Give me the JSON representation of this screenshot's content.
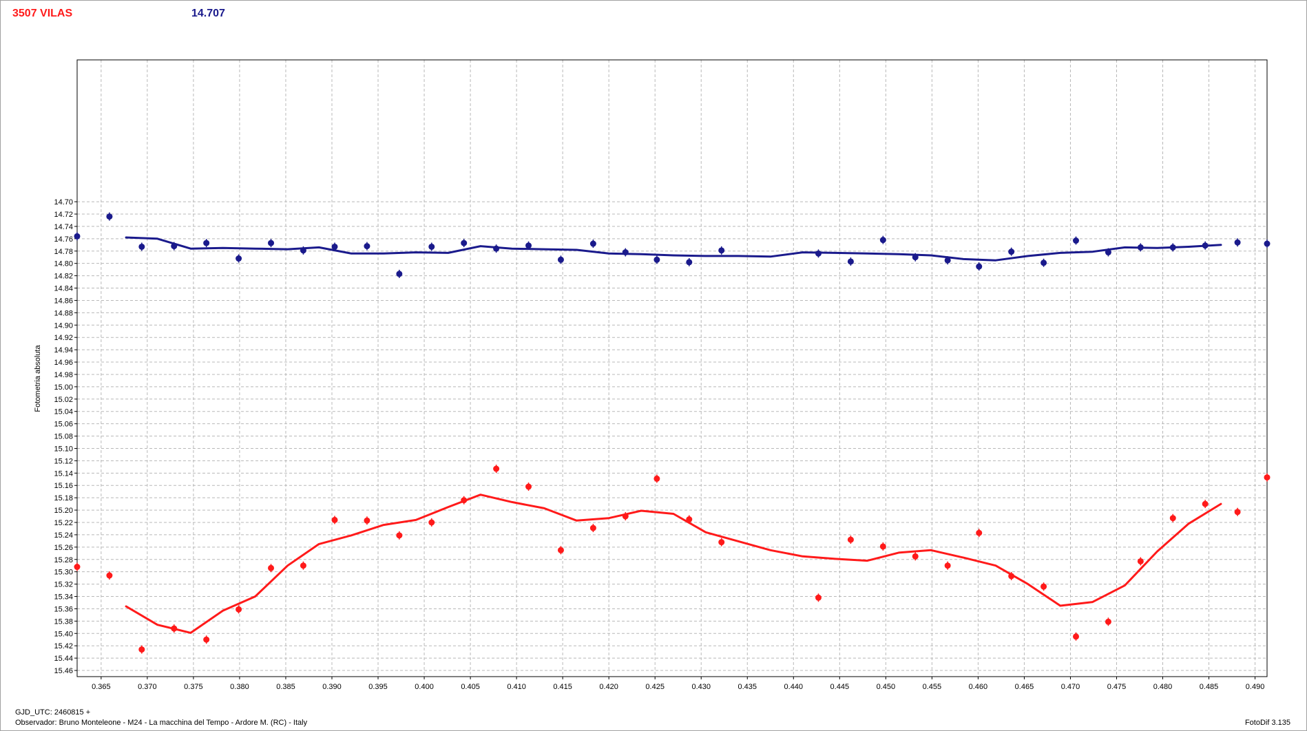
{
  "header": {
    "target_label": "3507 VILAS",
    "comparison_value": "14.707"
  },
  "footer": {
    "gjd_label": "GJD_UTC: 2460815 +",
    "observer_label": "Observador: Bruno Monteleone - M24 - La macchina del Tempo - Ardore M. (RC) - Italy",
    "software_label": "FotoDif 3.135"
  },
  "colors": {
    "target": "#ff1a1a",
    "comparison": "#1a1a8c",
    "grid": "#b8b8b8",
    "axis": "#000000"
  },
  "chart_data": {
    "type": "scatter",
    "ylabel": "Fotometria absoluta",
    "xlabel": "",
    "xlim": [
      0.3624,
      0.4913
    ],
    "ylim": [
      14.47,
      15.47
    ],
    "y_inverted": true,
    "grid": true,
    "x_ticks": [
      "0.365",
      "0.370",
      "0.375",
      "0.380",
      "0.385",
      "0.390",
      "0.395",
      "0.400",
      "0.405",
      "0.410",
      "0.415",
      "0.420",
      "0.425",
      "0.430",
      "0.435",
      "0.440",
      "0.445",
      "0.450",
      "0.455",
      "0.460",
      "0.465",
      "0.470",
      "0.475",
      "0.480",
      "0.485",
      "0.490"
    ],
    "y_ticks": [
      "14.70",
      "14.72",
      "14.74",
      "14.76",
      "14.78",
      "14.80",
      "14.82",
      "14.84",
      "14.86",
      "14.88",
      "14.90",
      "14.92",
      "14.94",
      "14.96",
      "14.98",
      "15.00",
      "15.02",
      "15.04",
      "15.06",
      "15.08",
      "15.10",
      "15.12",
      "15.14",
      "15.16",
      "15.18",
      "15.20",
      "15.22",
      "15.24",
      "15.26",
      "15.28",
      "15.30",
      "15.32",
      "15.34",
      "15.36",
      "15.38",
      "15.40",
      "15.42",
      "15.44",
      "15.46"
    ],
    "series": [
      {
        "name": "3507 VILAS",
        "color": "#ff1a1a",
        "points": [
          [
            0.3624,
            15.292
          ],
          [
            0.3659,
            15.306
          ],
          [
            0.3694,
            15.426
          ],
          [
            0.3729,
            15.392
          ],
          [
            0.3764,
            15.41
          ],
          [
            0.3799,
            15.361
          ],
          [
            0.3834,
            15.294
          ],
          [
            0.3869,
            15.29
          ],
          [
            0.3903,
            15.216
          ],
          [
            0.3938,
            15.217
          ],
          [
            0.3973,
            15.241
          ],
          [
            0.4008,
            15.22
          ],
          [
            0.4043,
            15.184
          ],
          [
            0.4078,
            15.133
          ],
          [
            0.4113,
            15.162
          ],
          [
            0.4148,
            15.265
          ],
          [
            0.4183,
            15.229
          ],
          [
            0.4218,
            15.21
          ],
          [
            0.4252,
            15.149
          ],
          [
            0.4287,
            15.215
          ],
          [
            0.4322,
            15.252
          ],
          [
            0.4427,
            15.342
          ],
          [
            0.4462,
            15.248
          ],
          [
            0.4497,
            15.259
          ],
          [
            0.4532,
            15.275
          ],
          [
            0.4567,
            15.29
          ],
          [
            0.4601,
            15.237
          ],
          [
            0.4636,
            15.307
          ],
          [
            0.4671,
            15.324
          ],
          [
            0.4706,
            15.405
          ],
          [
            0.4741,
            15.381
          ],
          [
            0.4776,
            15.283
          ],
          [
            0.4811,
            15.213
          ],
          [
            0.4846,
            15.19
          ],
          [
            0.4881,
            15.203
          ],
          [
            0.4913,
            15.147
          ]
        ],
        "trend": [
          [
            0.3677,
            15.356
          ],
          [
            0.3711,
            15.386
          ],
          [
            0.3747,
            15.399
          ],
          [
            0.3782,
            15.363
          ],
          [
            0.3817,
            15.34
          ],
          [
            0.3852,
            15.29
          ],
          [
            0.3886,
            15.255
          ],
          [
            0.3921,
            15.241
          ],
          [
            0.3956,
            15.224
          ],
          [
            0.3991,
            15.216
          ],
          [
            0.4026,
            15.195
          ],
          [
            0.4061,
            15.175
          ],
          [
            0.4095,
            15.187
          ],
          [
            0.413,
            15.197
          ],
          [
            0.4165,
            15.217
          ],
          [
            0.42,
            15.213
          ],
          [
            0.4235,
            15.201
          ],
          [
            0.427,
            15.206
          ],
          [
            0.4305,
            15.236
          ],
          [
            0.4375,
            15.265
          ],
          [
            0.441,
            15.275
          ],
          [
            0.4445,
            15.279
          ],
          [
            0.448,
            15.282
          ],
          [
            0.4514,
            15.269
          ],
          [
            0.4549,
            15.265
          ],
          [
            0.4584,
            15.277
          ],
          [
            0.4619,
            15.29
          ],
          [
            0.4654,
            15.32
          ],
          [
            0.4689,
            15.355
          ],
          [
            0.4724,
            15.349
          ],
          [
            0.4759,
            15.322
          ],
          [
            0.4794,
            15.267
          ],
          [
            0.4828,
            15.222
          ],
          [
            0.4863,
            15.19
          ]
        ]
      },
      {
        "name": "14.707",
        "color": "#1a1a8c",
        "points": [
          [
            0.3624,
            14.756
          ],
          [
            0.3659,
            14.724
          ],
          [
            0.3694,
            14.773
          ],
          [
            0.3729,
            14.772
          ],
          [
            0.3764,
            14.767
          ],
          [
            0.3799,
            14.792
          ],
          [
            0.3834,
            14.767
          ],
          [
            0.3869,
            14.779
          ],
          [
            0.3903,
            14.773
          ],
          [
            0.3938,
            14.772
          ],
          [
            0.3973,
            14.817
          ],
          [
            0.4008,
            14.773
          ],
          [
            0.4043,
            14.767
          ],
          [
            0.4078,
            14.776
          ],
          [
            0.4113,
            14.771
          ],
          [
            0.4148,
            14.794
          ],
          [
            0.4183,
            14.768
          ],
          [
            0.4218,
            14.782
          ],
          [
            0.4252,
            14.794
          ],
          [
            0.4287,
            14.798
          ],
          [
            0.4322,
            14.779
          ],
          [
            0.4427,
            14.784
          ],
          [
            0.4462,
            14.797
          ],
          [
            0.4497,
            14.762
          ],
          [
            0.4532,
            14.79
          ],
          [
            0.4567,
            14.795
          ],
          [
            0.4601,
            14.805
          ],
          [
            0.4636,
            14.781
          ],
          [
            0.4671,
            14.799
          ],
          [
            0.4706,
            14.763
          ],
          [
            0.4741,
            14.782
          ],
          [
            0.4776,
            14.774
          ],
          [
            0.4811,
            14.774
          ],
          [
            0.4846,
            14.771
          ],
          [
            0.4881,
            14.766
          ],
          [
            0.4913,
            14.768
          ]
        ],
        "trend": [
          [
            0.3677,
            14.758
          ],
          [
            0.3711,
            14.76
          ],
          [
            0.3747,
            14.776
          ],
          [
            0.3782,
            14.775
          ],
          [
            0.3817,
            14.776
          ],
          [
            0.3852,
            14.777
          ],
          [
            0.3886,
            14.774
          ],
          [
            0.3921,
            14.784
          ],
          [
            0.3956,
            14.784
          ],
          [
            0.3991,
            14.782
          ],
          [
            0.4026,
            14.783
          ],
          [
            0.4061,
            14.772
          ],
          [
            0.4095,
            14.776
          ],
          [
            0.413,
            14.777
          ],
          [
            0.4165,
            14.778
          ],
          [
            0.42,
            14.784
          ],
          [
            0.4235,
            14.785
          ],
          [
            0.427,
            14.787
          ],
          [
            0.4305,
            14.788
          ],
          [
            0.434,
            14.788
          ],
          [
            0.4375,
            14.789
          ],
          [
            0.441,
            14.782
          ],
          [
            0.4445,
            14.783
          ],
          [
            0.448,
            14.784
          ],
          [
            0.4514,
            14.785
          ],
          [
            0.4549,
            14.787
          ],
          [
            0.4584,
            14.793
          ],
          [
            0.4619,
            14.795
          ],
          [
            0.4654,
            14.788
          ],
          [
            0.4689,
            14.783
          ],
          [
            0.4724,
            14.781
          ],
          [
            0.4759,
            14.774
          ],
          [
            0.4794,
            14.775
          ],
          [
            0.4828,
            14.773
          ],
          [
            0.4863,
            14.77
          ]
        ]
      }
    ]
  }
}
